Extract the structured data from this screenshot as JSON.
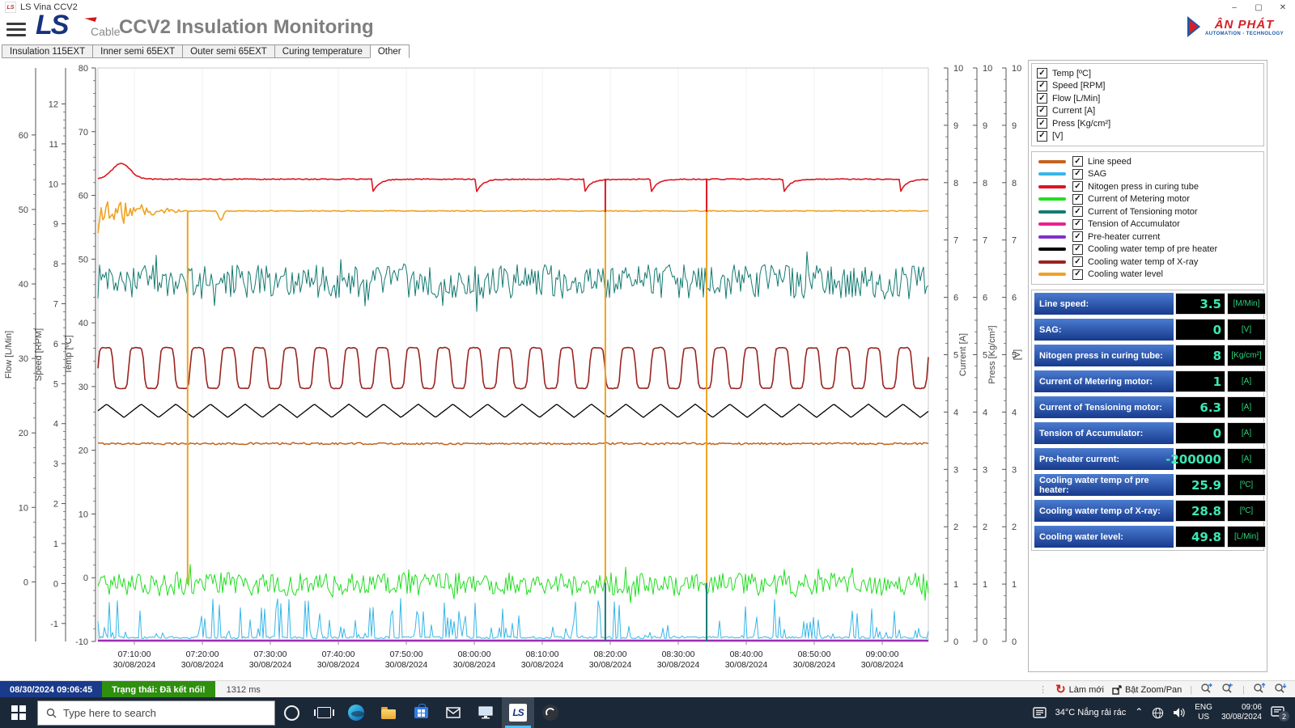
{
  "window": {
    "title": "LS Vina CCV2",
    "minimize": "–",
    "maximize": "▢",
    "close": "✕"
  },
  "header": {
    "brand": "LS",
    "brand_sub": "Cable",
    "title": "CCV2 Insulation Monitoring",
    "vendor_name": "ÂN PHÁT",
    "vendor_tagline": "AUTOMATION - TECHNOLOGY"
  },
  "tabs": [
    {
      "label": "Insulation 115EXT",
      "active": false
    },
    {
      "label": "Inner semi 65EXT",
      "active": false
    },
    {
      "label": "Outer semi 65EXT",
      "active": false
    },
    {
      "label": "Curing temperature",
      "active": false
    },
    {
      "label": "Other",
      "active": true
    }
  ],
  "chart_data": {
    "type": "line",
    "x_axis": {
      "tick_interval": "10 min",
      "ticks": [
        {
          "time": "07:10:00",
          "date": "30/08/2024"
        },
        {
          "time": "07:20:00",
          "date": "30/08/2024"
        },
        {
          "time": "07:30:00",
          "date": "30/08/2024"
        },
        {
          "time": "07:40:00",
          "date": "30/08/2024"
        },
        {
          "time": "07:50:00",
          "date": "30/08/2024"
        },
        {
          "time": "08:00:00",
          "date": "30/08/2024"
        },
        {
          "time": "08:10:00",
          "date": "30/08/2024"
        },
        {
          "time": "08:20:00",
          "date": "30/08/2024"
        },
        {
          "time": "08:30:00",
          "date": "30/08/2024"
        },
        {
          "time": "08:40:00",
          "date": "30/08/2024"
        },
        {
          "time": "08:50:00",
          "date": "30/08/2024"
        },
        {
          "time": "09:00:00",
          "date": "30/08/2024"
        }
      ]
    },
    "axes_left": [
      {
        "id": "flow",
        "title": "Flow [L/Min]",
        "min": -8,
        "max": 69,
        "tick_min": 0,
        "tick_max": 60,
        "tick_step": 10
      },
      {
        "id": "speed",
        "title": "Speed [RPM]",
        "min": -1.45,
        "max": 12.9,
        "tick_min": -1,
        "tick_max": 12,
        "tick_step": 1
      },
      {
        "id": "temp",
        "title": "Temp [ºC]",
        "min": -10,
        "max": 80,
        "tick_min": -10,
        "tick_max": 80,
        "tick_step": 10
      }
    ],
    "axes_right": [
      {
        "id": "current",
        "title": "Current [A]",
        "min": 0,
        "max": 10,
        "tick_min": 0,
        "tick_max": 10,
        "tick_step": 1
      },
      {
        "id": "press",
        "title": "Press [Kg/cm²]",
        "min": 0,
        "max": 10,
        "tick_min": 0,
        "tick_max": 10,
        "tick_step": 1
      },
      {
        "id": "v",
        "title": "[V]",
        "min": 0,
        "max": 10,
        "tick_min": 0,
        "tick_max": 10,
        "tick_step": 1
      }
    ],
    "series": [
      {
        "name": "Line speed",
        "color": "#c2641e",
        "axis": "speed",
        "current_value": 3.5,
        "pattern": {
          "kind": "flat",
          "base": 3.5,
          "noise": 0.025
        }
      },
      {
        "name": "SAG",
        "color": "#38b6e8",
        "axis": "v",
        "current_value": 0,
        "pattern": {
          "kind": "spikes",
          "base": 0.05,
          "spike": 0.7
        }
      },
      {
        "name": "Nitogen press in curing tube",
        "color": "#dc1620",
        "axis": "press",
        "current_value": 8,
        "pattern": {
          "kind": "saw",
          "base": 8.06,
          "hump": 0.27,
          "dip": 0.26,
          "dips": [
            0.33,
            0.455,
            0.585,
            0.665,
            0.825,
            0.965
          ]
        }
      },
      {
        "name": "Current of Metering motor",
        "color": "#23dd23",
        "axis": "current",
        "current_value": 1,
        "pattern": {
          "kind": "band",
          "base": 1.0,
          "noise": 0.2
        }
      },
      {
        "name": "Current of Tensioning motor",
        "color": "#157a72",
        "axis": "current",
        "current_value": 6.3,
        "pattern": {
          "kind": "band",
          "base": 6.27,
          "noise": 0.3
        }
      },
      {
        "name": "Tension of Accumulator",
        "color": "#e8218c",
        "axis": "current",
        "current_value": 0,
        "pattern": {
          "kind": "bottom",
          "offset": 0.5
        }
      },
      {
        "name": "Pre-heater current",
        "color": "#7d32c8",
        "axis": "current",
        "current_value": -200000,
        "pattern": {
          "kind": "bottom",
          "offset": 1.6
        }
      },
      {
        "name": "Cooling water temp of pre heater",
        "color": "#000000",
        "axis": "temp",
        "current_value": 25.9,
        "pattern": {
          "kind": "tri",
          "base": 26.2,
          "amp": 1.05,
          "period": 0.0417
        }
      },
      {
        "name": "Cooling water temp of X-ray",
        "color": "#9a2420",
        "axis": "temp",
        "current_value": 28.8,
        "pattern": {
          "kind": "square",
          "base": 32.9,
          "amp": 3.2,
          "period": 0.037
        }
      },
      {
        "name": "Cooling water level",
        "color": "#efa221",
        "axis": "flow",
        "current_value": 49.8,
        "pattern": {
          "kind": "level",
          "base": 49.8,
          "noise": 0.06,
          "rough_until": 0.115,
          "rough_amp": 1.5,
          "notch_at": 0.148
        }
      }
    ],
    "draw_order": [
      4,
      8,
      7,
      0,
      9,
      2,
      3,
      5,
      6,
      1
    ],
    "event_lines": [
      {
        "x_frac": 0.108,
        "segments": [
          {
            "color": "#efa221",
            "y1": 0.251,
            "y2": 0.9
          }
        ]
      },
      {
        "x_frac": 0.611,
        "segments": [
          {
            "color": "#dc1620",
            "y1": 0.193,
            "y2": 0.251
          },
          {
            "color": "#efa221",
            "y1": 0.251,
            "y2": 0.898
          },
          {
            "color": "#157a72",
            "y1": 0.898,
            "y2": 1.0
          }
        ]
      },
      {
        "x_frac": 0.733,
        "segments": [
          {
            "color": "#dc1620",
            "y1": 0.193,
            "y2": 0.251
          },
          {
            "color": "#efa221",
            "y1": 0.251,
            "y2": 0.898
          },
          {
            "color": "#157a72",
            "y1": 0.898,
            "y2": 1.0
          }
        ]
      }
    ]
  },
  "side_panel": {
    "axis_toggles": [
      {
        "label": "Temp [ºC]",
        "checked": true
      },
      {
        "label": "Speed [RPM]",
        "checked": true
      },
      {
        "label": "Flow [L/Min]",
        "checked": true
      },
      {
        "label": "Current [A]",
        "checked": true
      },
      {
        "label": "Press [Kg/cm²]",
        "checked": true
      },
      {
        "label": "[V]",
        "checked": true
      }
    ],
    "series_legend": [
      {
        "label": "Line speed",
        "color": "#c2641e",
        "checked": true
      },
      {
        "label": "SAG",
        "color": "#38b6e8",
        "checked": true
      },
      {
        "label": "Nitogen press in curing tube",
        "color": "#dc1620",
        "checked": true
      },
      {
        "label": "Current of Metering motor",
        "color": "#23dd23",
        "checked": true
      },
      {
        "label": "Current of Tensioning motor",
        "color": "#157a72",
        "checked": true
      },
      {
        "label": "Tension of Accumulator",
        "color": "#e8218c",
        "checked": true
      },
      {
        "label": "Pre-heater current",
        "color": "#7d32c8",
        "checked": true
      },
      {
        "label": "Cooling water temp of pre heater",
        "color": "#000000",
        "checked": true
      },
      {
        "label": "Cooling water temp of X-ray",
        "color": "#9a2420",
        "checked": true
      },
      {
        "label": "Cooling water level",
        "color": "#efa221",
        "checked": true
      }
    ],
    "values": [
      {
        "label": "Line speed:",
        "value": "3.5",
        "unit": "[M/Min]"
      },
      {
        "label": "SAG:",
        "value": "0",
        "unit": "[V]"
      },
      {
        "label": "Nitogen press in curing tube:",
        "value": "8",
        "unit": "[Kg/cm²]"
      },
      {
        "label": "Current of Metering motor:",
        "value": "1",
        "unit": "[A]"
      },
      {
        "label": "Current of Tensioning motor:",
        "value": "6.3",
        "unit": "[A]"
      },
      {
        "label": "Tension of Accumulator:",
        "value": "0",
        "unit": "[A]"
      },
      {
        "label": "Pre-heater current:",
        "value": "-200000",
        "unit": "[A]"
      },
      {
        "label": "Cooling water temp of pre heater:",
        "value": "25.9",
        "unit": "[ºC]"
      },
      {
        "label": "Cooling water temp of X-ray:",
        "value": "28.8",
        "unit": "[ºC]"
      },
      {
        "label": "Cooling water level:",
        "value": "49.8",
        "unit": "[L/Min]"
      }
    ]
  },
  "status_bar": {
    "datetime": "08/30/2024 09:06:45",
    "status": "Trạng thái: Đã kết nối!",
    "latency": "1312 ms",
    "refresh_label": "Làm mới",
    "zoompan_label": "Bật Zoom/Pan"
  },
  "taskbar": {
    "search_placeholder": "Type here to search",
    "tray": {
      "weather": "34°C Nắng rải rác",
      "lang_line1": "ENG",
      "lang_line2": "US",
      "time": "09:06",
      "date": "30/08/2024",
      "notification_count": "2"
    }
  }
}
